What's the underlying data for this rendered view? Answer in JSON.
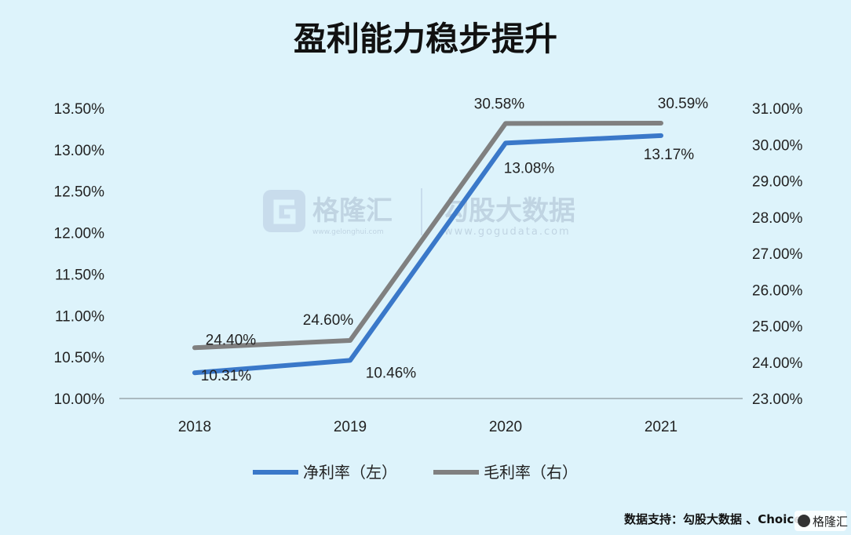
{
  "chart_data": {
    "type": "line",
    "title": "盈利能力稳步提升",
    "categories": [
      "2018",
      "2019",
      "2020",
      "2021"
    ],
    "series": [
      {
        "name": "净利率（左）",
        "axis": "left",
        "color": "#3a78c9",
        "values": [
          10.31,
          10.46,
          13.08,
          13.17
        ],
        "labels": [
          "10.31%",
          "10.46%",
          "13.08%",
          "13.17%"
        ]
      },
      {
        "name": "毛利率（右）",
        "axis": "right",
        "color": "#808080",
        "values": [
          24.4,
          24.6,
          30.58,
          30.59
        ],
        "labels": [
          "24.40%",
          "24.60%",
          "30.58%",
          "30.59%"
        ]
      }
    ],
    "y_left": {
      "ylim": [
        10.0,
        13.5
      ],
      "ticks": [
        "10.00%",
        "10.50%",
        "11.00%",
        "11.50%",
        "12.00%",
        "12.50%",
        "13.00%",
        "13.50%"
      ]
    },
    "y_right": {
      "ylim": [
        23.0,
        31.0
      ],
      "ticks": [
        "23.00%",
        "24.00%",
        "25.00%",
        "26.00%",
        "27.00%",
        "28.00%",
        "29.00%",
        "30.00%",
        "31.00%"
      ]
    },
    "grid": false,
    "legend_position": "bottom"
  },
  "watermark": {
    "brand": "格隆汇",
    "brand_url": "www.gelonghui.com",
    "partner": "勾股大数据",
    "partner_url": "www.gogudata.com"
  },
  "source": "数据支持：勾股大数据 、Choice",
  "corner_brand": "格隆汇"
}
